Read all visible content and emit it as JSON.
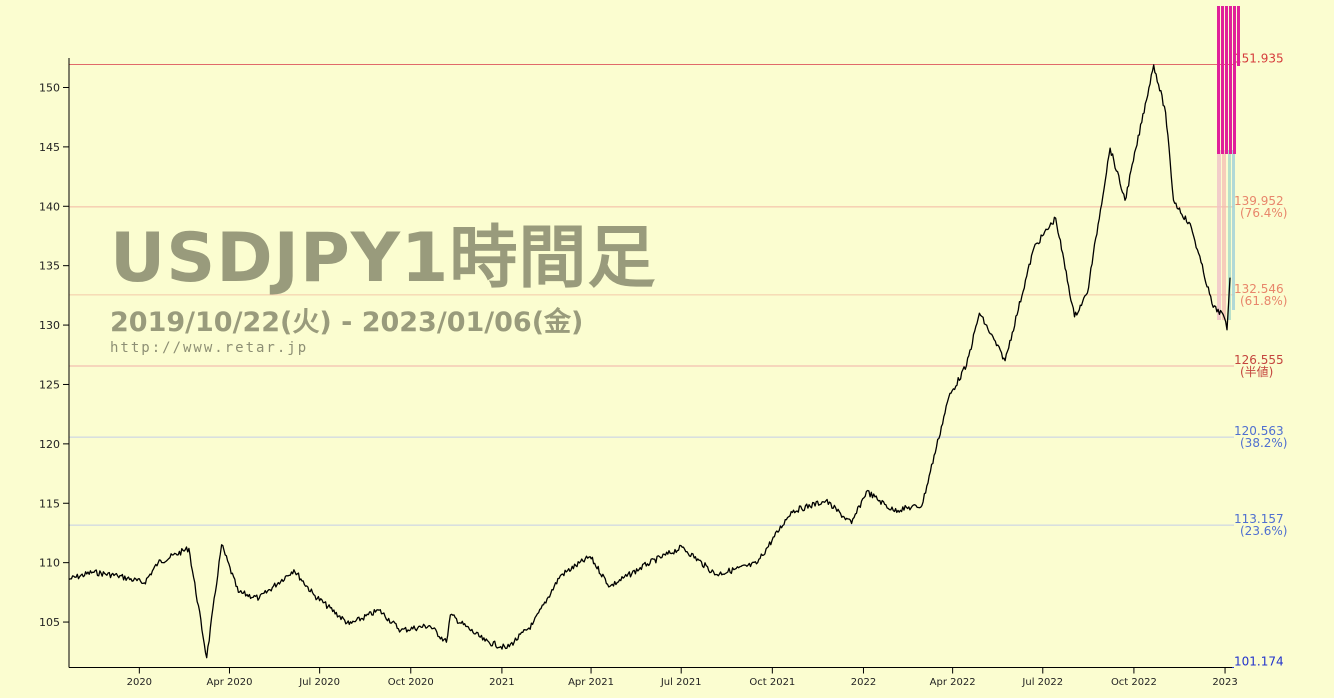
{
  "title": "USDJPY1時間足",
  "subtitle": "2019/10/22(火) - 2023/01/06(金)",
  "url": "http://www.retar.jp",
  "chart_data": {
    "type": "line",
    "ylim": [
      101.174,
      151.935
    ],
    "y_ticks": [
      105,
      110,
      115,
      120,
      125,
      130,
      135,
      140,
      145,
      150
    ],
    "x_tick_labels": [
      "2020",
      "Apr 2020",
      "Jul 2020",
      "Oct 2020",
      "2021",
      "Apr 2021",
      "Jul 2021",
      "Oct 2021",
      "2022",
      "Apr 2022",
      "Jul 2022",
      "Oct 2022",
      "2023"
    ],
    "x_range": [
      "2019-10-22",
      "2023-01-06"
    ],
    "grid": false,
    "levels": [
      {
        "value": 151.935,
        "label": "151.935",
        "pct": "",
        "color": "#e06a6a",
        "text_color": "#d63c3c"
      },
      {
        "value": 139.952,
        "label": "139.952",
        "pct": "(76.4%)",
        "color": "#f2b7a2",
        "text_color": "#e8866b"
      },
      {
        "value": 132.546,
        "label": "132.546",
        "pct": "(61.8%)",
        "color": "#f2c8a8",
        "text_color": "#e8866b"
      },
      {
        "value": 126.555,
        "label": "126.555",
        "pct": "(半値)",
        "color": "#f0b0a8",
        "text_color": "#c4453e"
      },
      {
        "value": 120.563,
        "label": "120.563",
        "pct": "(38.2%)",
        "color": "#c3cde8",
        "text_color": "#4f6fd0"
      },
      {
        "value": 113.157,
        "label": "113.157",
        "pct": "(23.6%)",
        "color": "#c3cde8",
        "text_color": "#4f6fd0"
      },
      {
        "value": 101.174,
        "label": "101.174",
        "pct": "",
        "color": "#2233cc",
        "text_color": "#2233cc"
      }
    ],
    "series": [
      {
        "x": [
          "2019-10-22",
          "2019-11-15",
          "2019-12-10",
          "2020-01-06",
          "2020-01-20",
          "2020-02-20",
          "2020-03-09",
          "2020-03-24",
          "2020-04-10",
          "2020-05-01",
          "2020-06-05",
          "2020-06-25",
          "2020-07-31",
          "2020-08-30",
          "2020-09-21",
          "2020-10-20",
          "2020-11-06",
          "2020-11-10",
          "2020-12-15",
          "2021-01-06",
          "2021-02-01",
          "2021-03-01",
          "2021-03-31",
          "2021-04-20",
          "2021-05-28",
          "2021-07-02",
          "2021-08-05",
          "2021-09-15",
          "2021-10-20",
          "2021-11-24",
          "2021-12-20",
          "2022-01-04",
          "2022-01-31",
          "2022-03-01",
          "2022-03-28",
          "2022-04-15",
          "2022-04-28",
          "2022-05-24",
          "2022-06-22",
          "2022-07-14",
          "2022-08-02",
          "2022-08-15",
          "2022-09-07",
          "2022-09-22",
          "2022-10-21",
          "2022-11-02",
          "2022-11-10",
          "2022-11-28",
          "2022-12-20",
          "2022-12-30",
          "2023-01-03",
          "2023-01-06"
        ],
        "values": [
          108.6,
          109.2,
          108.9,
          108.3,
          110.0,
          111.2,
          102.0,
          111.5,
          107.5,
          107.0,
          109.4,
          107.3,
          104.8,
          106.0,
          104.3,
          104.7,
          103.3,
          105.6,
          103.4,
          102.8,
          104.8,
          108.9,
          110.5,
          108.0,
          109.9,
          111.3,
          109.0,
          109.9,
          114.3,
          115.2,
          113.3,
          116.0,
          114.4,
          114.8,
          123.9,
          126.6,
          131.0,
          127.0,
          136.5,
          139.0,
          130.7,
          132.7,
          144.9,
          140.5,
          151.9,
          147.9,
          140.5,
          138.2,
          131.5,
          130.9,
          129.6,
          134.0
        ]
      }
    ]
  }
}
